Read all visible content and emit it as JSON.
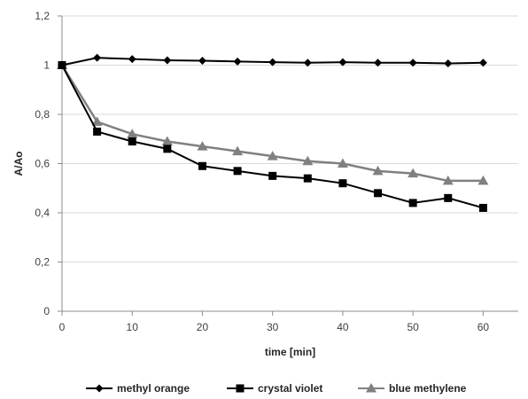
{
  "chart_data": {
    "type": "line",
    "title": "",
    "xlabel": "time [min]",
    "ylabel": "A/Ao",
    "x": [
      0,
      5,
      10,
      15,
      20,
      25,
      30,
      35,
      40,
      45,
      50,
      55,
      60
    ],
    "xlim": [
      0,
      65
    ],
    "ylim": [
      0,
      1.2
    ],
    "x_ticks": [
      "0",
      "10",
      "20",
      "30",
      "40",
      "50",
      "60"
    ],
    "x_tick_values": [
      0,
      10,
      20,
      30,
      40,
      50,
      60
    ],
    "y_ticks": [
      "0",
      "0,2",
      "0,4",
      "0,6",
      "0,8",
      "1",
      "1,2"
    ],
    "y_tick_values": [
      0,
      0.2,
      0.4,
      0.6,
      0.8,
      1.0,
      1.2
    ],
    "grid": "horizontal",
    "legend_position": "bottom",
    "series": [
      {
        "name": "methyl orange",
        "marker": "diamond",
        "color": "#000000",
        "values": [
          1.0,
          1.03,
          1.025,
          1.02,
          1.018,
          1.015,
          1.012,
          1.01,
          1.012,
          1.01,
          1.01,
          1.007,
          1.01
        ]
      },
      {
        "name": "crystal violet",
        "marker": "square",
        "color": "#000000",
        "values": [
          1.0,
          0.73,
          0.69,
          0.66,
          0.59,
          0.57,
          0.55,
          0.54,
          0.52,
          0.48,
          0.44,
          0.46,
          0.42
        ]
      },
      {
        "name": "blue methylene",
        "marker": "triangle",
        "color": "#808080",
        "values": [
          1.0,
          0.77,
          0.72,
          0.69,
          0.67,
          0.65,
          0.63,
          0.61,
          0.6,
          0.57,
          0.56,
          0.53,
          0.53
        ]
      }
    ]
  }
}
